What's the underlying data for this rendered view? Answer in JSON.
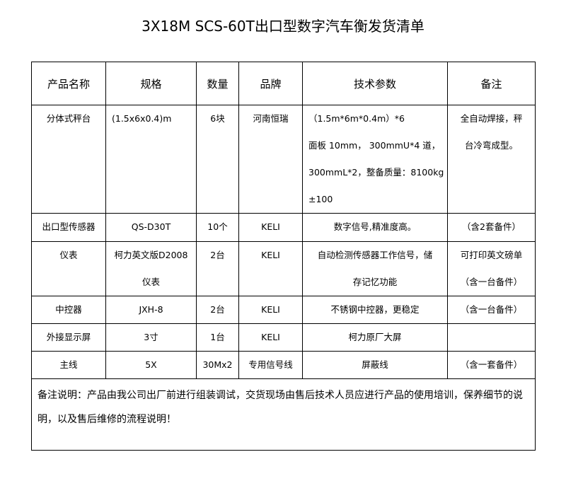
{
  "title": "3X18M SCS-60T出口型数字汽车衡发货清单",
  "headers": [
    "产品名称",
    "规格",
    "数量",
    "品牌",
    "技术参数",
    "备注"
  ],
  "rows": [
    {
      "name": "分体式秤台",
      "spec": [
        "(1.5x6x0.4)m"
      ],
      "qty": "6块",
      "brand": "河南恒瑞",
      "tech": [
        "（1.5m*6m*0.4m）*6",
        "面板 10mm， 300mmU*4 道，",
        "300mmL*2，整备质量：8100kg",
        "±100"
      ],
      "note": [
        "全自动焊接，秤",
        "台冷弯成型。"
      ]
    },
    {
      "name": "出口型传感器",
      "spec": [
        "QS-D30T"
      ],
      "qty": "10个",
      "brand": "KELI",
      "tech": [
        "数字信号,精准度高。"
      ],
      "note": [
        "（含2套备件）"
      ]
    },
    {
      "name": "仪表",
      "spec": [
        "柯力英文版D2008",
        "仪表"
      ],
      "qty": "2台",
      "brand": "KELI",
      "tech": [
        "自动检测传感器工作信号，储",
        "存记忆功能"
      ],
      "note": [
        "可打印英文磅单",
        "（含一台备件）"
      ]
    },
    {
      "name": "中控器",
      "spec": [
        "JXH-8"
      ],
      "qty": "2台",
      "brand": "KELI",
      "tech": [
        "不锈钢中控器，更稳定"
      ],
      "note": [
        "（含一台备件）"
      ]
    },
    {
      "name": "外接显示屏",
      "spec": [
        "3寸"
      ],
      "qty": "1台",
      "brand": "KELI",
      "tech": [
        "柯力原厂大屏"
      ],
      "note": []
    },
    {
      "name": "主线",
      "spec": [
        "5X"
      ],
      "qty": "30Mx2",
      "brand": "专用信号线",
      "tech": [
        "屏蔽线"
      ],
      "note": [
        "（含一套备件）"
      ]
    }
  ],
  "remark": "备注说明：产品由我公司出厂前进行组装调试，交货现场由售后技术人员应进行产品的使用培训，保养细节的说明，以及售后维修的流程说明！"
}
